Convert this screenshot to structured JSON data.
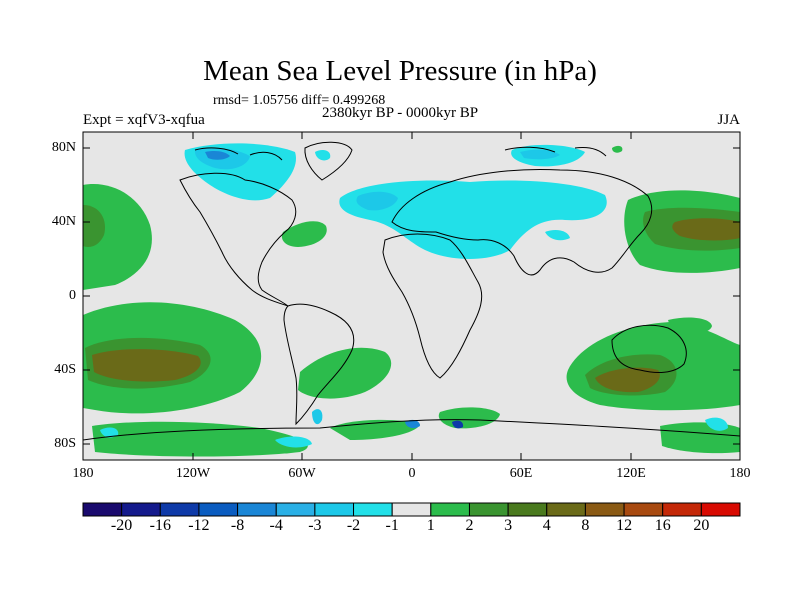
{
  "title": "Mean Sea Level Pressure (in hPa)",
  "stats": "rmsd= 1.05756 diff= 0.499268",
  "period": "2380kyr BP - 0000kyr BP",
  "experiment": "Expt = xqfV3-xqfua",
  "season": "JJA",
  "lat_ticks": [
    "80N",
    "40N",
    "0",
    "40S",
    "80S"
  ],
  "lon_ticks": [
    "180",
    "120W",
    "60W",
    "0",
    "60E",
    "120E",
    "180"
  ],
  "colorbar": {
    "labels": [
      "-20",
      "-16",
      "-12",
      "-8",
      "-4",
      "-3",
      "-2",
      "-1",
      "1",
      "2",
      "3",
      "4",
      "8",
      "12",
      "16",
      "20"
    ],
    "colors": [
      "#1a0a6e",
      "#141a8c",
      "#0e3aa8",
      "#0a5cc0",
      "#1a86d6",
      "#2ab0e6",
      "#1dc8e8",
      "#22e0e8",
      "#e6e6e6",
      "#2cbc4c",
      "#3a9430",
      "#4a7a1e",
      "#6a6a18",
      "#8a5a14",
      "#a84a10",
      "#c42808",
      "#d80a02"
    ]
  },
  "colors": {
    "background": "#e6e6e6",
    "low_neg": "#22e0e8",
    "mid_neg": "#1dc8e8",
    "strong_neg": "#1a86d6",
    "pos1": "#2cbc4c",
    "pos2": "#3a9430",
    "pos3": "#6a6a18"
  }
}
